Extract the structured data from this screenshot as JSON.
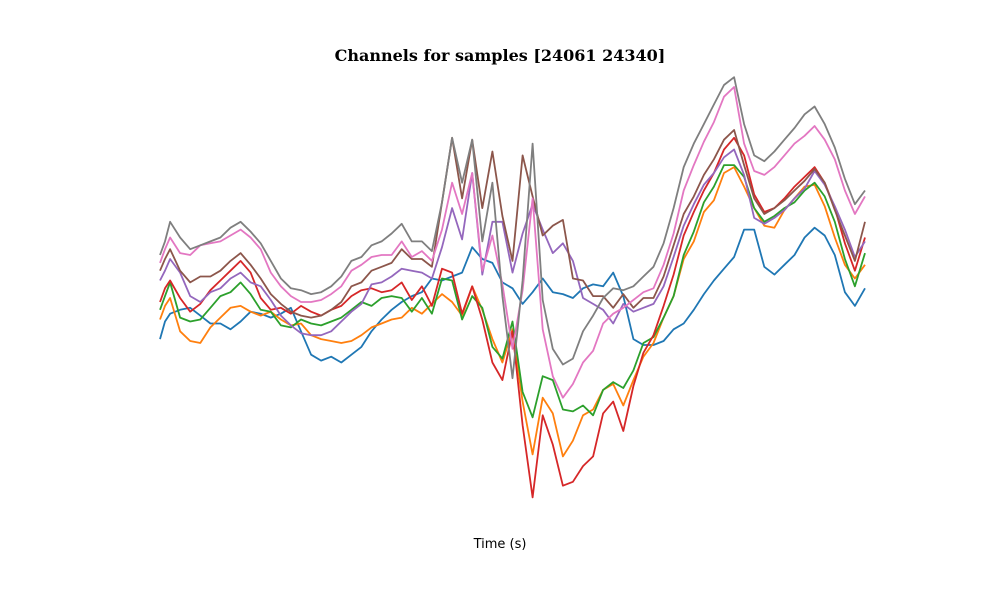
{
  "chart_data": {
    "type": "line",
    "title": "Channels for samples [24061 24340]",
    "xlabel": "Time (s)",
    "ylabel": "",
    "axes_visible": false,
    "grid": false,
    "legend": "none",
    "x_range": [
      0,
      280
    ],
    "y_range": [
      -11,
      11
    ],
    "series": [
      {
        "color": "#1f77b4",
        "x": [
          0,
          2,
          4,
          8,
          12,
          16,
          20,
          24,
          28,
          32,
          36,
          40,
          44,
          48,
          52,
          56,
          60,
          64,
          68,
          72,
          76,
          80,
          84,
          88,
          92,
          96,
          100,
          104,
          108,
          112,
          116,
          120,
          124,
          128,
          132,
          136,
          140,
          144,
          148,
          152,
          156,
          160,
          164,
          168,
          172,
          176,
          180,
          184,
          188,
          192,
          196,
          200,
          204,
          208,
          212,
          216,
          220,
          224,
          228,
          232,
          236,
          240,
          244,
          248,
          252,
          256,
          260,
          264,
          268,
          272,
          276,
          280
        ],
        "values": [
          -2.0,
          -1.1,
          -0.7,
          -0.5,
          -0.4,
          -0.8,
          -1.2,
          -1.2,
          -1.5,
          -1.1,
          -0.6,
          -0.7,
          -0.9,
          -0.7,
          -0.4,
          -1.6,
          -2.8,
          -3.1,
          -2.9,
          -3.2,
          -2.8,
          -2.4,
          -1.6,
          -1.0,
          -0.5,
          -0.1,
          0.2,
          0.4,
          1.1,
          1.0,
          1.2,
          1.4,
          2.7,
          2.1,
          1.9,
          0.9,
          0.6,
          -0.2,
          0.4,
          1.1,
          0.4,
          0.3,
          0.1,
          0.6,
          0.8,
          0.7,
          1.4,
          0.2,
          -2.0,
          -2.3,
          -2.3,
          -2.1,
          -1.5,
          -1.2,
          -0.5,
          0.3,
          1.0,
          1.6,
          2.2,
          3.6,
          3.6,
          1.7,
          1.3,
          1.8,
          2.3,
          3.2,
          3.7,
          3.3,
          2.3,
          0.4,
          -0.3,
          0.6
        ]
      },
      {
        "color": "#ff7f0e",
        "x": [
          0,
          2,
          4,
          8,
          12,
          16,
          20,
          24,
          28,
          32,
          36,
          40,
          44,
          48,
          52,
          56,
          60,
          64,
          68,
          72,
          76,
          80,
          84,
          88,
          92,
          96,
          100,
          104,
          108,
          112,
          116,
          120,
          124,
          128,
          132,
          136,
          140,
          144,
          148,
          152,
          156,
          160,
          164,
          168,
          172,
          176,
          180,
          184,
          188,
          192,
          196,
          200,
          204,
          208,
          212,
          216,
          220,
          224,
          228,
          232,
          236,
          240,
          244,
          248,
          252,
          256,
          260,
          264,
          268,
          272,
          276,
          280
        ],
        "values": [
          -1.0,
          -0.3,
          0.1,
          -1.6,
          -2.1,
          -2.2,
          -1.4,
          -0.9,
          -0.4,
          -0.3,
          -0.6,
          -0.8,
          -0.6,
          -1.0,
          -1.3,
          -1.2,
          -1.8,
          -2.0,
          -2.1,
          -2.2,
          -2.1,
          -1.8,
          -1.4,
          -1.2,
          -1.0,
          -0.9,
          -0.4,
          -0.7,
          -0.2,
          0.3,
          -0.1,
          -0.8,
          0.7,
          -0.5,
          -2.0,
          -3.2,
          -1.5,
          -5.2,
          -7.9,
          -5.0,
          -5.8,
          -8.0,
          -7.2,
          -5.9,
          -5.6,
          -4.6,
          -4.3,
          -5.4,
          -4.1,
          -2.9,
          -2.2,
          -0.9,
          0.2,
          2.1,
          3.0,
          4.5,
          5.1,
          6.5,
          6.8,
          5.8,
          4.7,
          3.8,
          3.7,
          4.6,
          5.2,
          5.8,
          5.9,
          4.8,
          3.2,
          1.8,
          1.1,
          1.8
        ]
      },
      {
        "color": "#2ca02c",
        "x": [
          0,
          2,
          4,
          8,
          12,
          16,
          20,
          24,
          28,
          32,
          36,
          40,
          44,
          48,
          52,
          56,
          60,
          64,
          68,
          72,
          76,
          80,
          84,
          88,
          92,
          96,
          100,
          104,
          108,
          112,
          116,
          120,
          124,
          128,
          132,
          136,
          140,
          144,
          148,
          152,
          156,
          160,
          164,
          168,
          172,
          176,
          180,
          184,
          188,
          192,
          196,
          200,
          204,
          208,
          212,
          216,
          220,
          224,
          228,
          232,
          236,
          240,
          244,
          248,
          252,
          256,
          260,
          264,
          268,
          272,
          276,
          280
        ],
        "values": [
          -0.5,
          0.2,
          0.9,
          -0.9,
          -1.1,
          -1.0,
          -0.4,
          0.2,
          0.4,
          0.9,
          0.3,
          -0.5,
          -0.6,
          -1.3,
          -1.4,
          -1.0,
          -1.2,
          -1.3,
          -1.1,
          -0.9,
          -0.5,
          -0.1,
          -0.3,
          0.1,
          0.2,
          0.1,
          -0.6,
          0.1,
          -0.7,
          1.1,
          1.0,
          -1.0,
          0.2,
          -0.4,
          -2.4,
          -3.0,
          -1.1,
          -4.7,
          -6.0,
          -3.9,
          -4.1,
          -5.6,
          -5.7,
          -5.4,
          -5.9,
          -4.6,
          -4.2,
          -4.5,
          -3.6,
          -2.2,
          -1.9,
          -0.9,
          0.2,
          2.3,
          3.5,
          5.0,
          5.8,
          6.9,
          6.9,
          6.3,
          4.7,
          4.0,
          4.3,
          4.7,
          5.0,
          5.6,
          6.0,
          5.3,
          4.0,
          2.1,
          0.7,
          2.4
        ]
      },
      {
        "color": "#d62728",
        "x": [
          0,
          2,
          4,
          8,
          12,
          16,
          20,
          24,
          28,
          32,
          36,
          40,
          44,
          48,
          52,
          56,
          60,
          64,
          68,
          72,
          76,
          80,
          84,
          88,
          92,
          96,
          100,
          104,
          108,
          112,
          116,
          120,
          124,
          128,
          132,
          136,
          140,
          144,
          148,
          152,
          156,
          160,
          164,
          168,
          172,
          176,
          180,
          184,
          188,
          192,
          196,
          200,
          204,
          208,
          212,
          216,
          220,
          224,
          228,
          232,
          236,
          240,
          244,
          248,
          252,
          256,
          260,
          264,
          268,
          272,
          276,
          280
        ],
        "values": [
          -0.1,
          0.6,
          1.0,
          0.1,
          -0.6,
          -0.2,
          0.5,
          1.0,
          1.5,
          2.0,
          1.4,
          0.1,
          -0.5,
          -0.4,
          -0.7,
          -0.3,
          -0.6,
          -0.8,
          -0.5,
          -0.3,
          0.2,
          0.5,
          0.6,
          0.4,
          0.5,
          0.9,
          0.0,
          0.7,
          -0.3,
          1.6,
          1.4,
          -0.7,
          0.7,
          -1.0,
          -3.2,
          -4.1,
          -1.6,
          -6.4,
          -10.1,
          -5.9,
          -7.4,
          -9.5,
          -9.3,
          -8.5,
          -8.0,
          -5.8,
          -5.2,
          -6.7,
          -4.4,
          -2.7,
          -1.8,
          -0.3,
          1.3,
          3.3,
          4.5,
          5.6,
          6.5,
          7.7,
          8.3,
          7.4,
          5.4,
          4.5,
          4.7,
          5.2,
          5.8,
          6.3,
          6.8,
          6.0,
          4.7,
          2.9,
          1.5,
          3.2
        ]
      },
      {
        "color": "#9467bd",
        "x": [
          0,
          2,
          4,
          8,
          12,
          16,
          20,
          24,
          28,
          32,
          36,
          40,
          44,
          48,
          52,
          56,
          60,
          64,
          68,
          72,
          76,
          80,
          84,
          88,
          92,
          96,
          100,
          104,
          108,
          112,
          116,
          120,
          124,
          128,
          132,
          136,
          140,
          144,
          148,
          152,
          156,
          160,
          164,
          168,
          172,
          176,
          180,
          184,
          188,
          192,
          196,
          200,
          204,
          208,
          212,
          216,
          220,
          224,
          228,
          232,
          236,
          240,
          244,
          248,
          252,
          256,
          260,
          264,
          268,
          272,
          276,
          280
        ],
        "values": [
          1.0,
          1.5,
          2.1,
          1.4,
          0.2,
          -0.1,
          0.4,
          0.6,
          1.1,
          1.4,
          0.9,
          0.7,
          0.0,
          -0.8,
          -1.3,
          -1.7,
          -1.8,
          -1.8,
          -1.6,
          -1.1,
          -0.6,
          -0.2,
          0.8,
          0.9,
          1.2,
          1.6,
          1.5,
          1.4,
          1.1,
          2.7,
          4.7,
          3.1,
          6.5,
          1.3,
          4.0,
          4.0,
          1.4,
          3.4,
          4.9,
          3.6,
          2.4,
          2.9,
          2.0,
          0.1,
          -0.2,
          -0.5,
          -1.2,
          -0.2,
          -0.6,
          -0.4,
          -0.2,
          0.7,
          2.2,
          3.8,
          4.9,
          5.9,
          6.5,
          7.3,
          7.7,
          6.4,
          4.2,
          3.9,
          4.2,
          4.6,
          5.2,
          5.7,
          6.6,
          5.9,
          4.8,
          3.6,
          2.2,
          3.0
        ]
      },
      {
        "color": "#8c564b",
        "x": [
          0,
          2,
          4,
          8,
          12,
          16,
          20,
          24,
          28,
          32,
          36,
          40,
          44,
          48,
          52,
          56,
          60,
          64,
          68,
          72,
          76,
          80,
          84,
          88,
          92,
          96,
          100,
          104,
          108,
          112,
          116,
          120,
          124,
          128,
          132,
          136,
          140,
          144,
          148,
          152,
          156,
          160,
          164,
          168,
          172,
          176,
          180,
          184,
          188,
          192,
          196,
          200,
          204,
          208,
          212,
          216,
          220,
          224,
          228,
          232,
          236,
          240,
          244,
          248,
          252,
          256,
          260,
          264,
          268,
          272,
          276,
          280
        ],
        "values": [
          1.5,
          2.1,
          2.6,
          1.5,
          0.9,
          1.2,
          1.2,
          1.5,
          2.0,
          2.4,
          1.8,
          1.1,
          0.3,
          -0.2,
          -0.6,
          -0.8,
          -0.9,
          -0.8,
          -0.5,
          -0.1,
          0.7,
          0.9,
          1.5,
          1.7,
          1.9,
          2.6,
          2.1,
          2.1,
          1.7,
          5.0,
          8.3,
          5.2,
          8.2,
          4.7,
          7.6,
          4.3,
          2.0,
          7.4,
          5.3,
          3.3,
          3.8,
          4.1,
          1.1,
          1.0,
          0.2,
          0.2,
          -0.4,
          0.3,
          -0.4,
          0.1,
          0.1,
          1.2,
          2.8,
          4.4,
          5.3,
          6.4,
          7.2,
          8.2,
          8.7,
          6.9,
          5.2,
          4.4,
          4.7,
          5.1,
          5.6,
          6.1,
          6.7,
          6.0,
          4.6,
          3.3,
          2.0,
          4.0
        ]
      },
      {
        "color": "#e377c2",
        "x": [
          0,
          2,
          4,
          8,
          12,
          16,
          20,
          24,
          28,
          32,
          36,
          40,
          44,
          48,
          52,
          56,
          60,
          64,
          68,
          72,
          76,
          80,
          84,
          88,
          92,
          96,
          100,
          104,
          108,
          112,
          116,
          120,
          124,
          128,
          132,
          136,
          140,
          144,
          148,
          152,
          156,
          160,
          164,
          168,
          172,
          176,
          180,
          184,
          188,
          192,
          196,
          200,
          204,
          208,
          212,
          216,
          220,
          224,
          228,
          232,
          236,
          240,
          244,
          248,
          252,
          256,
          260,
          264,
          268,
          272,
          276,
          280
        ],
        "values": [
          1.9,
          2.6,
          3.2,
          2.4,
          2.3,
          2.8,
          2.9,
          3.0,
          3.3,
          3.6,
          3.2,
          2.6,
          1.4,
          0.7,
          0.2,
          -0.1,
          -0.1,
          0.0,
          0.3,
          0.7,
          1.5,
          1.8,
          2.2,
          2.3,
          2.3,
          3.0,
          2.2,
          2.5,
          2.0,
          3.6,
          6.0,
          4.4,
          6.5,
          1.5,
          3.3,
          0.8,
          -2.5,
          0.5,
          5.2,
          -1.5,
          -3.9,
          -5.0,
          -4.3,
          -3.2,
          -2.6,
          -1.2,
          -0.7,
          -0.4,
          0.0,
          0.4,
          0.6,
          1.8,
          3.4,
          5.6,
          6.9,
          8.1,
          9.1,
          10.4,
          10.9,
          8.0,
          6.6,
          6.4,
          6.8,
          7.4,
          8.0,
          8.4,
          8.9,
          8.2,
          7.2,
          5.6,
          4.4,
          5.3
        ]
      },
      {
        "color": "#7f7f7f",
        "x": [
          0,
          2,
          4,
          8,
          12,
          16,
          20,
          24,
          28,
          32,
          36,
          40,
          44,
          48,
          52,
          56,
          60,
          64,
          68,
          72,
          76,
          80,
          84,
          88,
          92,
          96,
          100,
          104,
          108,
          112,
          116,
          120,
          124,
          128,
          132,
          136,
          140,
          144,
          148,
          152,
          156,
          160,
          164,
          168,
          172,
          176,
          180,
          184,
          188,
          192,
          196,
          200,
          204,
          208,
          212,
          216,
          220,
          224,
          228,
          232,
          236,
          240,
          244,
          248,
          252,
          256,
          260,
          264,
          268,
          272,
          276,
          280
        ],
        "values": [
          2.3,
          3.0,
          4.0,
          3.2,
          2.6,
          2.8,
          3.0,
          3.2,
          3.7,
          4.0,
          3.5,
          2.9,
          2.0,
          1.1,
          0.6,
          0.5,
          0.3,
          0.4,
          0.7,
          1.2,
          2.0,
          2.2,
          2.8,
          3.0,
          3.4,
          3.9,
          3.0,
          3.0,
          2.5,
          5.0,
          8.3,
          6.0,
          8.2,
          3.0,
          6.0,
          0.2,
          -4.0,
          1.0,
          8.0,
          0.0,
          -2.5,
          -3.3,
          -3.0,
          -1.6,
          -0.8,
          0.1,
          0.6,
          0.5,
          0.7,
          1.2,
          1.7,
          2.9,
          4.7,
          6.8,
          8.0,
          9.0,
          10.0,
          11.0,
          11.4,
          9.0,
          7.4,
          7.1,
          7.6,
          8.2,
          8.8,
          9.5,
          9.9,
          9.0,
          7.8,
          6.2,
          4.9,
          5.6
        ]
      }
    ]
  }
}
